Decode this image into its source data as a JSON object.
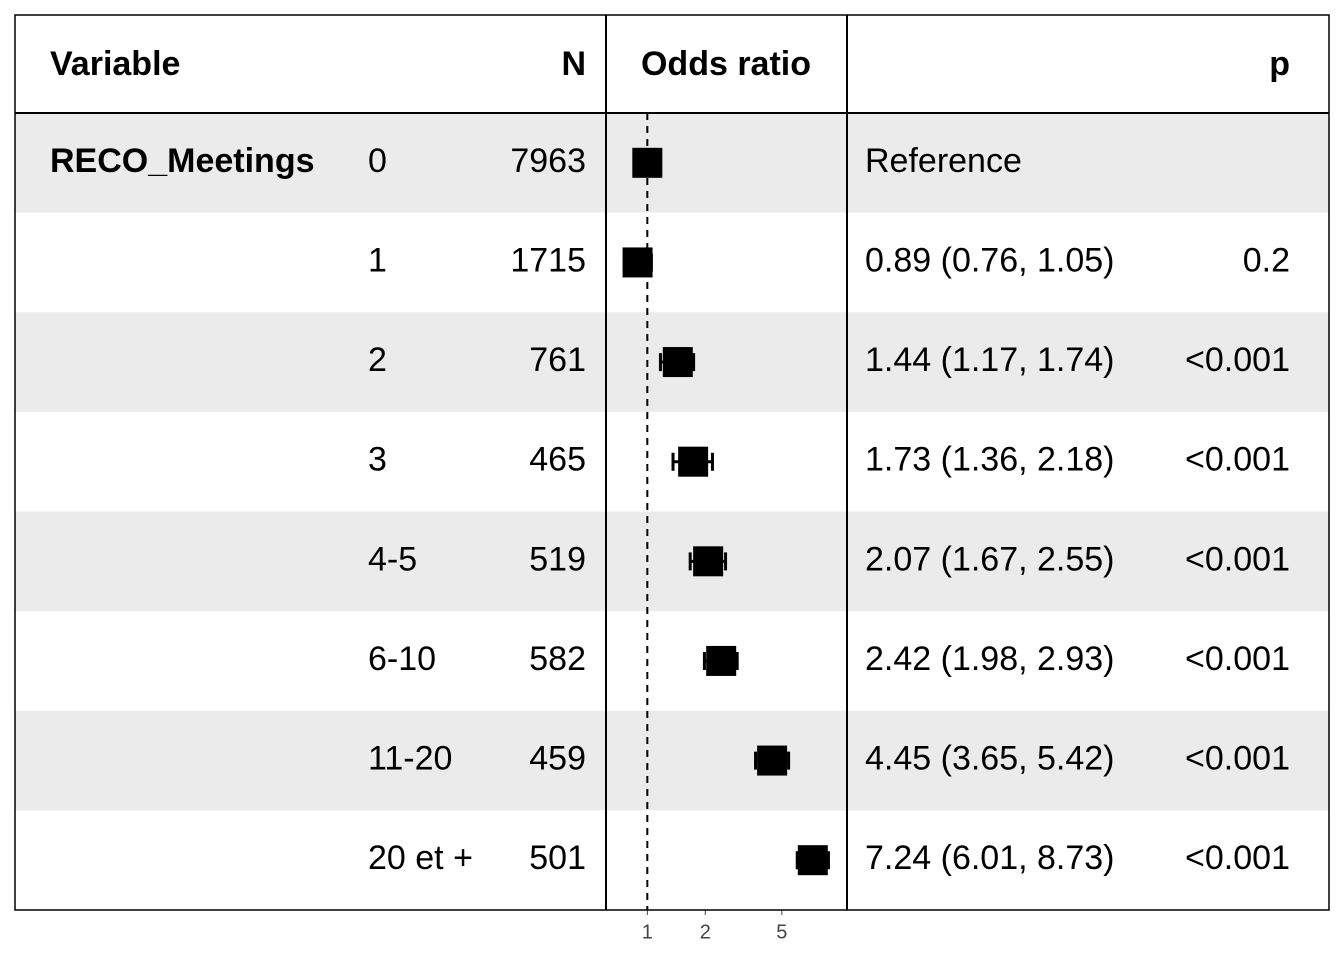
{
  "chart_data": {
    "type": "forest",
    "headers": {
      "variable": "Variable",
      "n": "N",
      "estimate": "Odds ratio",
      "p": "p"
    },
    "variable": "RECO_Meetings",
    "rows": [
      {
        "level": "0",
        "n": 7963,
        "estimate": 1,
        "ci_low": null,
        "ci_high": null,
        "or_label": "Reference",
        "p": null
      },
      {
        "level": "1",
        "n": 1715,
        "estimate": 0.89,
        "ci_low": 0.76,
        "ci_high": 1.05,
        "or_label": "0.89 (0.76, 1.05)",
        "p": "0.2"
      },
      {
        "level": "2",
        "n": 761,
        "estimate": 1.44,
        "ci_low": 1.17,
        "ci_high": 1.74,
        "or_label": "1.44 (1.17, 1.74)",
        "p": "<0.001"
      },
      {
        "level": "3",
        "n": 465,
        "estimate": 1.73,
        "ci_low": 1.36,
        "ci_high": 2.18,
        "or_label": "1.73 (1.36, 2.18)",
        "p": "<0.001"
      },
      {
        "level": "4-5",
        "n": 519,
        "estimate": 2.07,
        "ci_low": 1.67,
        "ci_high": 2.55,
        "or_label": "2.07 (1.67, 2.55)",
        "p": "<0.001"
      },
      {
        "level": "6-10",
        "n": 582,
        "estimate": 2.42,
        "ci_low": 1.98,
        "ci_high": 2.93,
        "or_label": "2.42 (1.98, 2.93)",
        "p": "<0.001"
      },
      {
        "level": "11-20",
        "n": 459,
        "estimate": 4.45,
        "ci_low": 3.65,
        "ci_high": 5.42,
        "or_label": "4.45 (3.65, 5.42)",
        "p": "<0.001"
      },
      {
        "level": "20 et +",
        "n": 501,
        "estimate": 7.24,
        "ci_low": 6.01,
        "ci_high": 8.73,
        "or_label": "7.24 (6.01, 8.73)",
        "p": "<0.001"
      }
    ],
    "xscale": "log",
    "xlim": [
      0.61,
      10.9
    ],
    "xticks": [
      1,
      2,
      5
    ],
    "reference_line": 1,
    "color": "#000000",
    "stripe_color": "#ebebeb"
  }
}
